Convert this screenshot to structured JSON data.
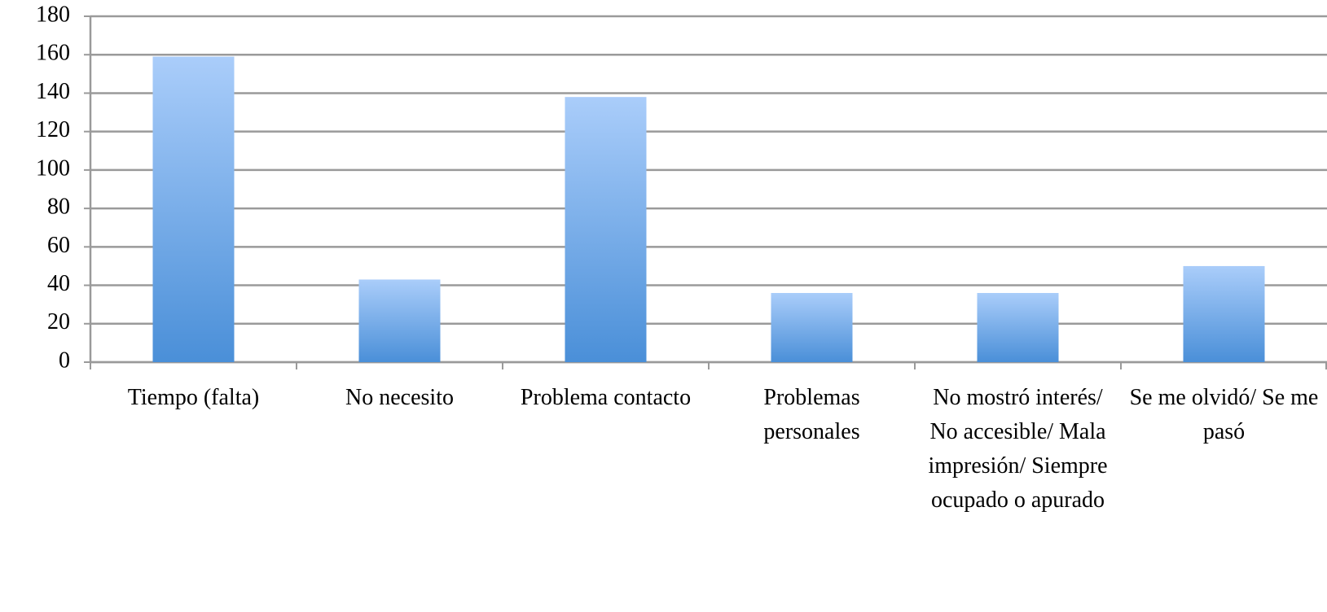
{
  "chart_data": {
    "type": "bar",
    "categories": [
      "Tiempo (falta)",
      "No necesito",
      "Problema contacto",
      "Problemas personales",
      "No mostró interés/ No accesible/ Mala impresión/ Siempre ocupado o apurado",
      "Se me olvidó/ Se me pasó"
    ],
    "values": [
      159,
      43,
      138,
      36,
      36,
      50
    ],
    "color": "#4a8fd8",
    "ylim": [
      0,
      180
    ],
    "yticks": [
      0,
      20,
      40,
      60,
      80,
      100,
      120,
      140,
      160,
      180
    ],
    "grid": true
  }
}
